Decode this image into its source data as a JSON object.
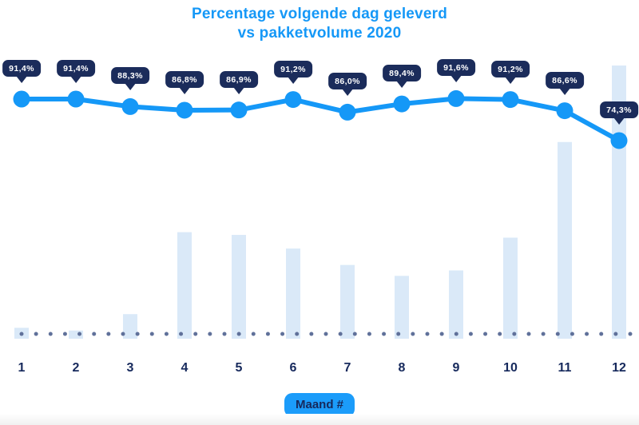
{
  "page": {
    "background": "#ffffff"
  },
  "title": {
    "line1": "Percentage volgende dag geleverd",
    "line2": "vs pakketvolume 2020",
    "color": "#1598f7"
  },
  "x_axis": {
    "label_badge": "Maand #",
    "badge_bg": "#1b9cfa",
    "badge_text_color": "#16295c",
    "tick_labels": [
      "1",
      "2",
      "3",
      "4",
      "5",
      "6",
      "7",
      "8",
      "9",
      "10",
      "11",
      "12"
    ],
    "tick_color": "#16295c"
  },
  "chart_data": {
    "type": "combo",
    "title": "Percentage volgende dag geleverd vs pakketvolume 2020",
    "xlabel": "Maand #",
    "categories": [
      "1",
      "2",
      "3",
      "4",
      "5",
      "6",
      "7",
      "8",
      "9",
      "10",
      "11",
      "12"
    ],
    "series": [
      {
        "name": "Percentage volgende dag geleverd",
        "type": "line",
        "unit": "%",
        "values": [
          91.4,
          91.4,
          88.3,
          86.8,
          86.9,
          91.2,
          86.0,
          89.4,
          91.6,
          91.2,
          86.6,
          74.3
        ],
        "point_labels": [
          "91,4%",
          "91,4%",
          "88,3%",
          "86,8%",
          "86,9%",
          "91,2%",
          "86,0%",
          "89,4%",
          "91,6%",
          "91,2%",
          "86,6%",
          "74,3%"
        ],
        "color": "#1598f7"
      },
      {
        "name": "Pakketvolume 2020",
        "type": "bar",
        "unit": "relative volume (max month = 100)",
        "values": [
          4,
          3,
          9,
          39,
          38,
          33,
          27,
          23,
          25,
          37,
          72,
          100
        ],
        "color": "#dae9f8"
      }
    ],
    "legend": "none",
    "grid": "off",
    "baseline_style": "dotted",
    "baseline_dot_color": "#60719a",
    "tooltip_bg": "#1b2c5b",
    "tooltip_text_color": "#ffffff"
  }
}
